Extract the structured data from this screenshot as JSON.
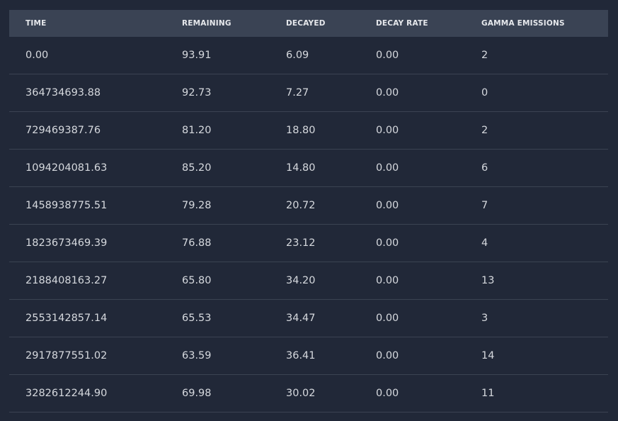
{
  "columns": [
    "TIME",
    "REMAINING",
    "DECAYED",
    "DECAY RATE",
    "GAMMA EMISSIONS"
  ],
  "rows": [
    [
      "0.00",
      "93.91",
      "6.09",
      "0.00",
      "2"
    ],
    [
      "364734693.88",
      "92.73",
      "7.27",
      "0.00",
      "0"
    ],
    [
      "729469387.76",
      "81.20",
      "18.80",
      "0.00",
      "2"
    ],
    [
      "1094204081.63",
      "85.20",
      "14.80",
      "0.00",
      "6"
    ],
    [
      "1458938775.51",
      "79.28",
      "20.72",
      "0.00",
      "7"
    ],
    [
      "1823673469.39",
      "76.88",
      "23.12",
      "0.00",
      "4"
    ],
    [
      "2188408163.27",
      "65.80",
      "34.20",
      "0.00",
      "13"
    ],
    [
      "2553142857.14",
      "65.53",
      "34.47",
      "0.00",
      "3"
    ],
    [
      "2917877551.02",
      "63.59",
      "36.41",
      "0.00",
      "14"
    ],
    [
      "3282612244.90",
      "69.98",
      "30.02",
      "0.00",
      "11"
    ]
  ]
}
